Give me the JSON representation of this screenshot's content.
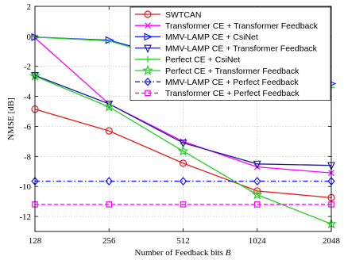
{
  "chart_data": {
    "type": "line",
    "title": "",
    "xlabel": "Number of Feedback bits B",
    "ylabel": "NMSE [dB]",
    "x": [
      128,
      256,
      512,
      1024,
      2048
    ],
    "x_tick_labels": [
      "128",
      "256",
      "512",
      "1024",
      "2048"
    ],
    "x_scale": "log2",
    "ylim": [
      -13,
      2
    ],
    "y_ticks": [
      2,
      0,
      -2,
      -4,
      -6,
      -8,
      -10,
      -12
    ],
    "y_tick_labels": [
      "2",
      "0",
      "-2",
      "-4",
      "-6",
      "-8",
      "-10",
      "-12"
    ],
    "grid": true,
    "legend_position": "top-right",
    "series": [
      {
        "name": "SWTCAN",
        "values": [
          -4.85,
          -6.3,
          -8.45,
          -10.3,
          -10.75
        ],
        "color": "#e8191c",
        "marker": "circle",
        "dash": "solid"
      },
      {
        "name": "Transformer CE + Transformer Feedback",
        "values": [
          -0.1,
          -4.5,
          -7.0,
          -8.7,
          -9.1
        ],
        "color": "#ff00ff",
        "marker": "x",
        "dash": "solid"
      },
      {
        "name": "MMV-LAMP CE + CsiNet",
        "values": [
          -0.05,
          -0.25,
          -1.6,
          -2.05,
          -3.15
        ],
        "color": "#1a1aff",
        "marker": "triangle-right",
        "dash": "solid"
      },
      {
        "name": "MMV-LAMP CE + Transformer Feedback",
        "values": [
          -2.6,
          -4.5,
          -7.1,
          -8.5,
          -8.6
        ],
        "color": "#1a1aa0",
        "marker": "triangle-down",
        "dash": "solid"
      },
      {
        "name": "Perfect CE + CsiNet",
        "values": [
          -0.05,
          -0.3,
          -1.75,
          -2.2,
          -3.4
        ],
        "color": "#22d022",
        "marker": "plus",
        "dash": "solid"
      },
      {
        "name": "Perfect CE + Transformer Feedback",
        "values": [
          -2.65,
          -4.7,
          -7.65,
          -10.55,
          -12.5
        ],
        "color": "#22d022",
        "marker": "star",
        "dash": "solid"
      },
      {
        "name": "MMV-LAMP CE + Perfect Feedback",
        "values": [
          -9.65,
          -9.65,
          -9.65,
          -9.65,
          -9.65
        ],
        "color": "#1a1aff",
        "marker": "diamond",
        "dash": "dashdot"
      },
      {
        "name": "Transformer CE + Perfect Feedback",
        "values": [
          -11.2,
          -11.2,
          -11.2,
          -11.2,
          -11.2
        ],
        "color": "#ff00ff",
        "marker": "square",
        "dash": "dashed"
      }
    ]
  }
}
